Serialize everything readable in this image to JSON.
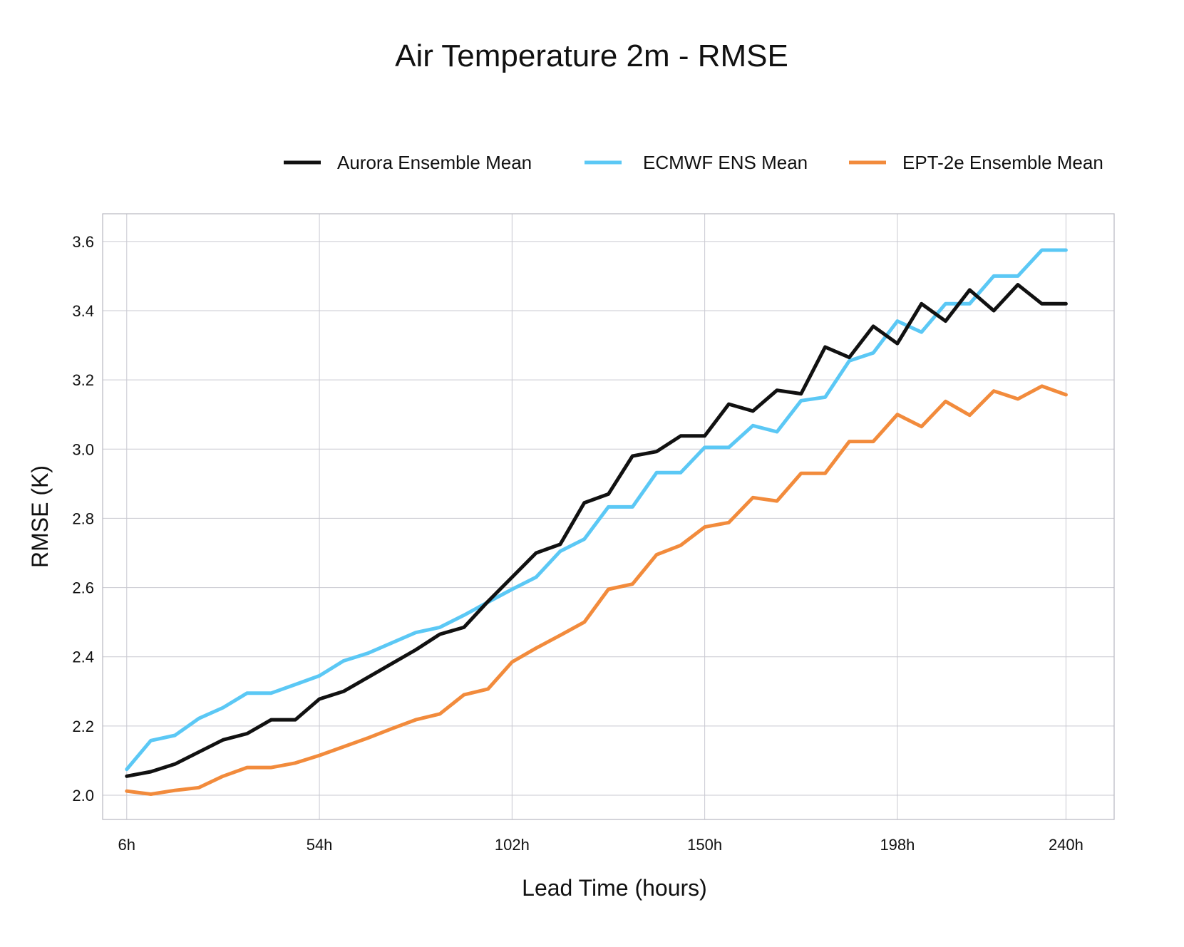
{
  "chart_data": {
    "type": "line",
    "title": "Air Temperature 2m - RMSE",
    "xlabel": "Lead Time (hours)",
    "ylabel": "RMSE (K)",
    "xlim": [
      0,
      252
    ],
    "ylim": [
      1.93,
      3.68
    ],
    "x_ticks": [
      6,
      54,
      102,
      150,
      198,
      240
    ],
    "x_tick_labels": [
      "6h",
      "54h",
      "102h",
      "150h",
      "198h",
      "240h"
    ],
    "y_ticks": [
      2.0,
      2.2,
      2.4,
      2.6,
      2.8,
      3.0,
      3.2,
      3.4,
      3.6
    ],
    "y_tick_labels": [
      "2.0",
      "2.2",
      "2.4",
      "2.6",
      "2.8",
      "3.0",
      "3.2",
      "3.4",
      "3.6"
    ],
    "grid": true,
    "legend_position": "top-right",
    "x": [
      6,
      12,
      18,
      24,
      30,
      36,
      42,
      48,
      54,
      60,
      66,
      72,
      78,
      84,
      90,
      96,
      102,
      108,
      114,
      120,
      126,
      132,
      138,
      144,
      150,
      156,
      162,
      168,
      174,
      180,
      186,
      192,
      198,
      204,
      210,
      216,
      222,
      228,
      234,
      240
    ],
    "series": [
      {
        "name": "Aurora Ensemble Mean",
        "color": "#111111",
        "values": [
          2.055,
          2.068,
          2.09,
          2.125,
          2.16,
          2.178,
          2.218,
          2.218,
          2.278,
          2.3,
          2.34,
          2.38,
          2.42,
          2.465,
          2.485,
          2.56,
          2.63,
          2.7,
          2.725,
          2.845,
          2.87,
          2.98,
          2.993,
          3.038,
          3.038,
          3.13,
          3.11,
          3.17,
          3.16,
          3.295,
          3.265,
          3.355,
          3.305,
          3.42,
          3.37,
          3.46,
          3.4,
          3.475,
          3.42,
          3.42
        ]
      },
      {
        "name": "ECMWF ENS Mean",
        "color": "#5bc8f5",
        "values": [
          2.075,
          2.158,
          2.173,
          2.222,
          2.253,
          2.295,
          2.295,
          2.32,
          2.345,
          2.388,
          2.41,
          2.44,
          2.47,
          2.485,
          2.52,
          2.558,
          2.595,
          2.63,
          2.705,
          2.74,
          2.833,
          2.833,
          2.932,
          2.932,
          3.005,
          3.005,
          3.068,
          3.05,
          3.14,
          3.15,
          3.255,
          3.278,
          3.37,
          3.338,
          3.42,
          3.42,
          3.5,
          3.5,
          3.575,
          3.575
        ]
      },
      {
        "name": "EPT-2e Ensemble Mean",
        "color": "#f28b3c",
        "values": [
          2.012,
          2.003,
          2.014,
          2.022,
          2.055,
          2.08,
          2.08,
          2.093,
          2.115,
          2.14,
          2.165,
          2.192,
          2.218,
          2.235,
          2.29,
          2.307,
          2.385,
          2.425,
          2.462,
          2.5,
          2.595,
          2.61,
          2.695,
          2.722,
          2.775,
          2.788,
          2.86,
          2.85,
          2.93,
          2.93,
          3.022,
          3.022,
          3.1,
          3.065,
          3.138,
          3.098,
          3.168,
          3.145,
          3.182,
          3.157
        ]
      }
    ]
  }
}
